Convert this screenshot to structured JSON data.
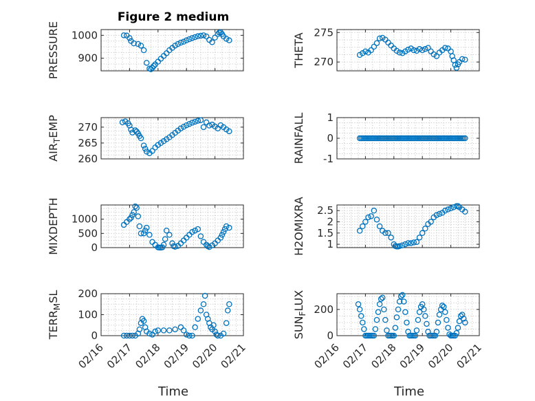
{
  "figure": {
    "title": "Figure 2 medium"
  },
  "chart_data": [
    {
      "type": "scatter",
      "id": "pressure",
      "ylabel": "PRESSURE",
      "ylim": [
        845,
        1025
      ],
      "yticks": [
        900,
        1000
      ],
      "ytick_labels": [
        "900",
        "1000"
      ],
      "xlim": [
        16,
        21
      ],
      "x": [
        16.8,
        16.9,
        17.0,
        17.05,
        17.15,
        17.3,
        17.4,
        17.5,
        17.6,
        17.7,
        17.75,
        17.8,
        17.85,
        17.9,
        18.0,
        18.1,
        18.2,
        18.3,
        18.4,
        18.5,
        18.6,
        18.7,
        18.8,
        18.9,
        19.0,
        19.1,
        19.2,
        19.3,
        19.4,
        19.5,
        19.6,
        19.7,
        19.8,
        19.9,
        20.0,
        20.1,
        20.15,
        20.2,
        20.25,
        20.3,
        20.4,
        20.5
      ],
      "y": [
        1000,
        999,
        988,
        975,
        965,
        962,
        955,
        935,
        880,
        855,
        852,
        858,
        866,
        873,
        885,
        898,
        910,
        922,
        935,
        945,
        955,
        962,
        968,
        972,
        978,
        983,
        988,
        992,
        996,
        998,
        1000,
        995,
        980,
        970,
        990,
        1005,
        1012,
        1013,
        1005,
        995,
        985,
        978
      ]
    },
    {
      "type": "scatter",
      "id": "theta",
      "ylabel": "THETA",
      "ylim": [
        268.5,
        275.5
      ],
      "yticks": [
        270,
        275
      ],
      "ytick_labels": [
        "270",
        "275"
      ],
      "xlim": [
        16,
        21
      ],
      "x": [
        16.8,
        16.9,
        17.0,
        17.1,
        17.2,
        17.3,
        17.4,
        17.5,
        17.6,
        17.7,
        17.8,
        17.9,
        18.0,
        18.1,
        18.2,
        18.3,
        18.4,
        18.5,
        18.6,
        18.7,
        18.8,
        18.9,
        19.0,
        19.1,
        19.2,
        19.3,
        19.4,
        19.5,
        19.6,
        19.7,
        19.8,
        19.9,
        20.0,
        20.05,
        20.1,
        20.15,
        20.2,
        20.25,
        20.3,
        20.4,
        20.5
      ],
      "y": [
        271.2,
        271.5,
        271.8,
        271.6,
        272.0,
        272.6,
        273.2,
        274.0,
        274.1,
        273.8,
        273.3,
        272.8,
        272.3,
        271.9,
        271.6,
        271.5,
        271.8,
        272.1,
        272.3,
        272.0,
        271.9,
        272.2,
        272.0,
        272.2,
        272.4,
        271.8,
        271.3,
        271.0,
        271.6,
        272.0,
        272.4,
        272.3,
        271.8,
        271.0,
        270.3,
        269.5,
        269.0,
        269.6,
        270.0,
        270.5,
        270.4
      ]
    },
    {
      "type": "scatter",
      "id": "air_temp",
      "ylabel": "AIR_TEMP",
      "ylim": [
        260,
        273
      ],
      "yticks": [
        260,
        265,
        270
      ],
      "ytick_labels": [
        "260",
        "265",
        "270"
      ],
      "xlim": [
        16,
        21
      ],
      "x": [
        16.75,
        16.85,
        16.95,
        17.0,
        17.05,
        17.1,
        17.2,
        17.25,
        17.3,
        17.35,
        17.4,
        17.5,
        17.55,
        17.6,
        17.7,
        17.8,
        17.9,
        18.0,
        18.1,
        18.2,
        18.3,
        18.4,
        18.5,
        18.6,
        18.7,
        18.8,
        18.9,
        19.0,
        19.1,
        19.2,
        19.3,
        19.4,
        19.5,
        19.6,
        19.7,
        19.8,
        19.9,
        20.0,
        20.1,
        20.2,
        20.3,
        20.4,
        20.5
      ],
      "y": [
        271.5,
        271.8,
        271.2,
        270.5,
        269.2,
        268.3,
        269.0,
        268.6,
        268.0,
        267.2,
        266.5,
        264.2,
        263.2,
        262.3,
        261.8,
        262.5,
        263.6,
        264.4,
        265.0,
        265.6,
        266.2,
        266.8,
        267.5,
        268.2,
        268.9,
        269.6,
        270.1,
        270.6,
        271.0,
        271.4,
        271.7,
        272.0,
        272.2,
        270.0,
        271.5,
        270.5,
        270.8,
        270.2,
        269.6,
        270.6,
        270.0,
        269.3,
        268.7
      ]
    },
    {
      "type": "scatter",
      "id": "rainfall",
      "ylabel": "RAINFALL",
      "ylim": [
        -1,
        1
      ],
      "yticks": [
        -1,
        0,
        1
      ],
      "ytick_labels": [
        "-1",
        "0",
        "1"
      ],
      "xlim": [
        16,
        21
      ],
      "x": [
        16.8,
        16.85,
        16.9,
        16.95,
        17.0,
        17.05,
        17.1,
        17.15,
        17.2,
        17.25,
        17.3,
        17.35,
        17.4,
        17.45,
        17.5,
        17.55,
        17.6,
        17.65,
        17.7,
        17.75,
        17.8,
        17.85,
        17.9,
        17.95,
        18.0,
        18.05,
        18.1,
        18.15,
        18.2,
        18.25,
        18.3,
        18.35,
        18.4,
        18.45,
        18.5,
        18.55,
        18.6,
        18.65,
        18.7,
        18.75,
        18.8,
        18.85,
        18.9,
        18.95,
        19.0,
        19.05,
        19.1,
        19.15,
        19.2,
        19.25,
        19.3,
        19.35,
        19.4,
        19.45,
        19.5,
        19.55,
        19.6,
        19.65,
        19.7,
        19.75,
        19.8,
        19.85,
        19.9,
        19.95,
        20.0,
        20.05,
        20.1,
        20.15,
        20.2,
        20.25,
        20.3,
        20.35,
        20.4,
        20.45,
        20.5
      ],
      "y": [
        0,
        0,
        0,
        0,
        0,
        0,
        0,
        0,
        0,
        0,
        0,
        0,
        0,
        0,
        0,
        0,
        0,
        0,
        0,
        0,
        0,
        0,
        0,
        0,
        0,
        0,
        0,
        0,
        0,
        0,
        0,
        0,
        0,
        0,
        0,
        0,
        0,
        0,
        0,
        0,
        0,
        0,
        0,
        0,
        0,
        0,
        0,
        0,
        0,
        0,
        0,
        0,
        0,
        0,
        0,
        0,
        0,
        0,
        0,
        0,
        0,
        0,
        0,
        0,
        0,
        0,
        0,
        0,
        0,
        0,
        0,
        0,
        0,
        0,
        0
      ]
    },
    {
      "type": "scatter",
      "id": "mixdepth",
      "ylabel": "MIXDEPTH",
      "ylim": [
        0,
        1500
      ],
      "yticks": [
        0,
        500,
        1000
      ],
      "ytick_labels": [
        "0",
        "500",
        "1000"
      ],
      "xlim": [
        16,
        21
      ],
      "x": [
        16.8,
        16.9,
        17.0,
        17.05,
        17.1,
        17.15,
        17.2,
        17.25,
        17.3,
        17.35,
        17.4,
        17.5,
        17.55,
        17.6,
        17.7,
        17.8,
        17.9,
        18.0,
        18.05,
        18.1,
        18.15,
        18.2,
        18.25,
        18.3,
        18.4,
        18.5,
        18.55,
        18.6,
        18.7,
        18.8,
        18.9,
        19.0,
        19.1,
        19.2,
        19.3,
        19.4,
        19.5,
        19.6,
        19.7,
        19.75,
        19.8,
        19.9,
        20.0,
        20.1,
        20.2,
        20.25,
        20.3,
        20.35,
        20.4,
        20.5
      ],
      "y": [
        800,
        900,
        1000,
        1050,
        1150,
        1250,
        1450,
        1400,
        1100,
        750,
        500,
        500,
        600,
        700,
        450,
        200,
        100,
        10,
        0,
        0,
        10,
        100,
        300,
        600,
        450,
        150,
        50,
        30,
        60,
        150,
        250,
        350,
        450,
        550,
        600,
        650,
        400,
        200,
        100,
        50,
        20,
        80,
        150,
        250,
        350,
        450,
        550,
        650,
        750,
        700
      ]
    },
    {
      "type": "scatter",
      "id": "h2omixra",
      "ylabel": "H2OMIXRA",
      "ylim": [
        0.85,
        2.75
      ],
      "yticks": [
        1,
        1.5,
        2,
        2.5
      ],
      "ytick_labels": [
        "1",
        "1.5",
        "2",
        "2.5"
      ],
      "xlim": [
        16,
        21
      ],
      "x": [
        16.8,
        16.9,
        17.0,
        17.1,
        17.2,
        17.3,
        17.4,
        17.5,
        17.6,
        17.7,
        17.8,
        17.9,
        18.0,
        18.05,
        18.1,
        18.15,
        18.2,
        18.3,
        18.4,
        18.5,
        18.6,
        18.7,
        18.8,
        18.9,
        19.0,
        19.1,
        19.2,
        19.3,
        19.4,
        19.5,
        19.6,
        19.7,
        19.8,
        19.9,
        20.0,
        20.1,
        20.2,
        20.25,
        20.3,
        20.4,
        20.5
      ],
      "y": [
        1.6,
        1.8,
        2.0,
        2.2,
        2.25,
        2.5,
        2.1,
        1.8,
        1.6,
        1.5,
        1.5,
        1.3,
        1.0,
        0.92,
        0.9,
        0.9,
        0.92,
        0.95,
        1.0,
        1.05,
        1.05,
        1.08,
        1.1,
        1.3,
        1.5,
        1.7,
        1.9,
        2.0,
        2.2,
        2.3,
        2.35,
        2.4,
        2.5,
        2.55,
        2.6,
        2.65,
        2.7,
        2.7,
        2.65,
        2.55,
        2.45
      ]
    },
    {
      "type": "scatter",
      "id": "terr_msl",
      "ylabel": "TERR_MSL",
      "ylim": [
        0,
        200
      ],
      "yticks": [
        0,
        100,
        200
      ],
      "ytick_labels": [
        "0",
        "100",
        "200"
      ],
      "xlim": [
        16,
        21
      ],
      "x": [
        16.8,
        16.9,
        17.0,
        17.1,
        17.2,
        17.3,
        17.35,
        17.4,
        17.45,
        17.5,
        17.55,
        17.6,
        17.7,
        17.8,
        17.9,
        18.0,
        18.2,
        18.4,
        18.6,
        18.8,
        18.9,
        19.0,
        19.1,
        19.2,
        19.3,
        19.4,
        19.5,
        19.6,
        19.65,
        19.7,
        19.75,
        19.8,
        19.85,
        19.9,
        19.95,
        20.0,
        20.05,
        20.1,
        20.2,
        20.3,
        20.4,
        20.45,
        20.5
      ],
      "y": [
        0,
        0,
        0,
        0,
        0,
        10,
        30,
        60,
        80,
        70,
        40,
        20,
        10,
        5,
        20,
        25,
        25,
        25,
        30,
        40,
        25,
        5,
        0,
        0,
        40,
        80,
        120,
        150,
        190,
        100,
        80,
        60,
        40,
        30,
        50,
        20,
        5,
        0,
        0,
        10,
        60,
        120,
        150
      ]
    },
    {
      "type": "scatter",
      "id": "sun_flux",
      "ylabel": "SUN_FLUX",
      "ylim": [
        0,
        320
      ],
      "yticks": [
        0,
        200
      ],
      "ytick_labels": [
        "0",
        "200"
      ],
      "xlim": [
        16,
        21
      ],
      "x": [
        16.75,
        16.8,
        16.85,
        16.9,
        16.95,
        17.0,
        17.05,
        17.1,
        17.15,
        17.2,
        17.25,
        17.3,
        17.35,
        17.4,
        17.45,
        17.5,
        17.55,
        17.6,
        17.65,
        17.7,
        17.75,
        17.8,
        17.85,
        17.9,
        17.95,
        18.0,
        18.05,
        18.1,
        18.15,
        18.2,
        18.25,
        18.3,
        18.35,
        18.4,
        18.45,
        18.5,
        18.55,
        18.6,
        18.65,
        18.7,
        18.75,
        18.8,
        18.85,
        18.9,
        18.95,
        19.0,
        19.05,
        19.1,
        19.15,
        19.2,
        19.25,
        19.3,
        19.35,
        19.4,
        19.45,
        19.5,
        19.55,
        19.6,
        19.65,
        19.7,
        19.75,
        19.8,
        19.85,
        19.9,
        19.95,
        20.0,
        20.05,
        20.1,
        20.15,
        20.2,
        20.25,
        20.3,
        20.35,
        20.4,
        20.45,
        20.5
      ],
      "y": [
        240,
        200,
        150,
        100,
        50,
        0,
        0,
        0,
        0,
        0,
        0,
        0,
        50,
        120,
        180,
        240,
        280,
        290,
        200,
        120,
        40,
        0,
        0,
        0,
        0,
        0,
        60,
        140,
        200,
        260,
        300,
        310,
        260,
        180,
        100,
        30,
        0,
        0,
        0,
        0,
        0,
        40,
        120,
        180,
        220,
        240,
        200,
        150,
        90,
        30,
        0,
        0,
        0,
        0,
        0,
        30,
        100,
        160,
        200,
        230,
        220,
        180,
        120,
        60,
        10,
        0,
        0,
        0,
        0,
        20,
        60,
        110,
        150,
        160,
        130,
        100
      ]
    }
  ],
  "xaxis": {
    "label": "Time",
    "tick_values": [
      16,
      17,
      18,
      19,
      20,
      21
    ],
    "tick_labels": [
      "02/16",
      "02/17",
      "02/18",
      "02/19",
      "02/20",
      "02/21"
    ]
  }
}
